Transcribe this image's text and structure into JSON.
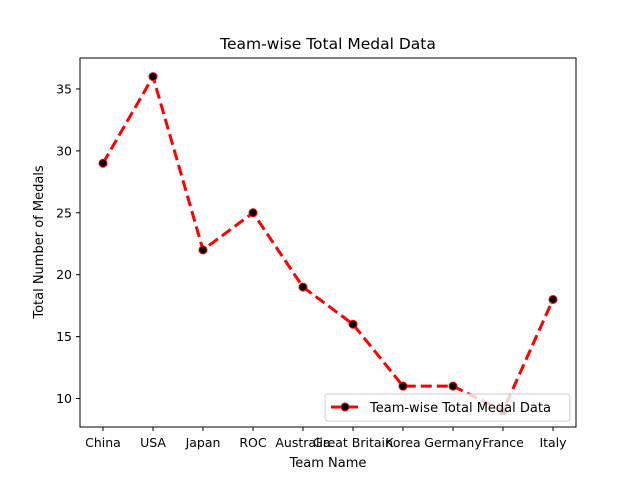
{
  "chart_data": {
    "type": "line",
    "title": "Team-wise Total Medal Data",
    "xlabel": "Team Name",
    "ylabel": "Total Number of Medals",
    "categories": [
      "China",
      "USA",
      "Japan",
      "ROC",
      "Australia",
      "Great Britain",
      "Korea",
      "Germany",
      "France",
      "Italy"
    ],
    "series": [
      {
        "name": "Team-wise Total Medal Data",
        "values": [
          29,
          36,
          22,
          25,
          19,
          16,
          11,
          11,
          9,
          18
        ],
        "line_color": "#ff0000",
        "marker_color": "#000000",
        "line_style": "dashed"
      }
    ],
    "ylim": [
      7.7,
      37.5
    ],
    "yticks": [
      10,
      15,
      20,
      25,
      30,
      35
    ],
    "grid": false,
    "legend_position": "lower-right"
  }
}
